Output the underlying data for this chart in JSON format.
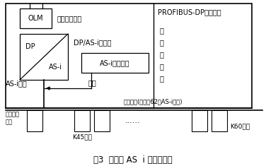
{
  "title": "图3  从站及 AS  i 总线示意图",
  "title_fontsize": 8.5,
  "bg_color": "#ffffff",
  "text_color": "#000000",
  "line_color": "#000000",
  "profibus_label": "PROFIBUS-DP光纤环网",
  "fiber_label": "光纤链路模块",
  "coupler_label": "DP/AS-i耦合器",
  "power_unit_label": "AS-i供电单元",
  "power_supply_label": "供电",
  "cable_label": "AS-i电缆",
  "field_device_label": "现场设备(至多接62个AS-i从站)",
  "cabinet_chars": [
    "现",
    "场",
    "控",
    "制",
    "柜"
  ],
  "olm_label": "OLM",
  "dp_label": "DP",
  "asi_label": "AS-i",
  "ovp_label": "过压保护\n模块",
  "k45_label": "K45模块",
  "dots_label": "......",
  "k60_label": "K60模块"
}
